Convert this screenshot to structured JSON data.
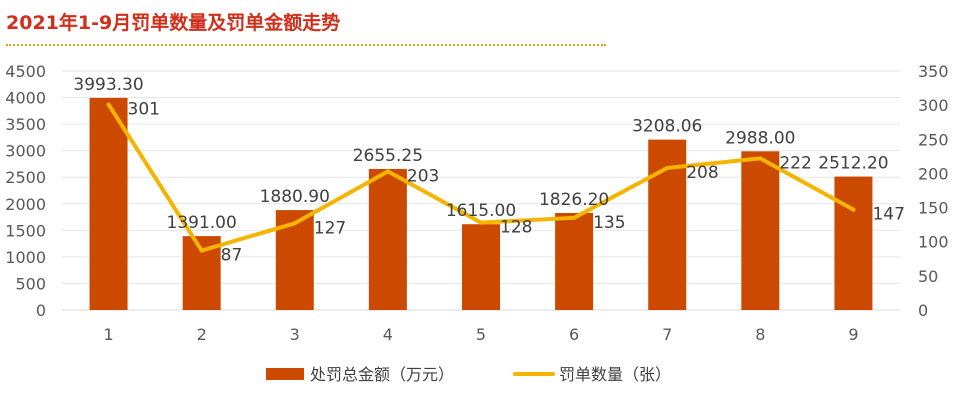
{
  "title": "2021年1-9月罚单数量及罚单金额走势",
  "colors": {
    "title": "#d02f1b",
    "bar": "#cc4a00",
    "line": "#f5b400",
    "grid": "#e6e6e6",
    "axis_text": "#595959",
    "rule": "#e0a21c"
  },
  "chart_data": {
    "type": "bar",
    "categories": [
      "1",
      "2",
      "3",
      "4",
      "5",
      "6",
      "7",
      "8",
      "9"
    ],
    "series": [
      {
        "name": "处罚总金额（万元）",
        "type": "bar",
        "axis": "left",
        "values": [
          3993.3,
          1391.0,
          1880.9,
          2655.25,
          1615.0,
          1826.2,
          3208.06,
          2988.0,
          2512.2
        ],
        "labels": [
          "3993.30",
          "1391.00",
          "1880.90",
          "2655.25",
          "1615.00",
          "1826.20",
          "3208.06",
          "2988.00",
          "2512.20"
        ]
      },
      {
        "name": "罚单数量（张）",
        "type": "line",
        "axis": "right",
        "values": [
          301,
          87,
          127,
          203,
          128,
          135,
          208,
          222,
          147
        ],
        "labels": [
          "301",
          "87",
          "127",
          "203",
          "128",
          "135",
          "208",
          "222",
          "147"
        ]
      }
    ],
    "y_left": {
      "ylim": [
        0,
        4500
      ],
      "ticks": [
        "0",
        "500",
        "1000",
        "1500",
        "2000",
        "2500",
        "3000",
        "3500",
        "4000",
        "4500"
      ]
    },
    "y_right": {
      "ylim": [
        0,
        350
      ],
      "ticks": [
        "0",
        "50",
        "100",
        "150",
        "200",
        "250",
        "300",
        "350"
      ]
    },
    "grid": true,
    "legend": "bottom"
  }
}
